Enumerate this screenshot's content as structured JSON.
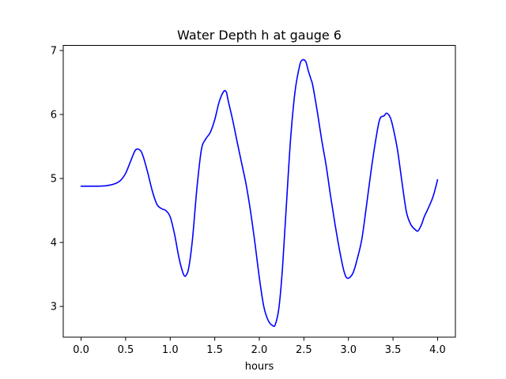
{
  "chart_data": {
    "type": "line",
    "title": "Water Depth h at gauge 6",
    "xlabel": "hours",
    "ylabel": "",
    "xlim": [
      -0.2,
      4.2
    ],
    "ylim": [
      2.52,
      7.08
    ],
    "xticks": [
      0.0,
      0.5,
      1.0,
      1.5,
      2.0,
      2.5,
      3.0,
      3.5,
      4.0
    ],
    "xtick_labels": [
      "0.0",
      "0.5",
      "1.0",
      "1.5",
      "2.0",
      "2.5",
      "3.0",
      "3.5",
      "4.0"
    ],
    "yticks": [
      3,
      4,
      5,
      6,
      7
    ],
    "ytick_labels": [
      "3",
      "4",
      "5",
      "6",
      "7"
    ],
    "grid": false,
    "series": [
      {
        "name": "",
        "color": "#0000ff",
        "x": [
          0.0,
          0.2,
          0.3,
          0.4,
          0.45,
          0.5,
          0.55,
          0.6,
          0.63,
          0.67,
          0.7,
          0.75,
          0.8,
          0.85,
          0.9,
          0.95,
          1.0,
          1.05,
          1.1,
          1.15,
          1.18,
          1.21,
          1.25,
          1.3,
          1.35,
          1.4,
          1.45,
          1.5,
          1.55,
          1.6,
          1.63,
          1.65,
          1.7,
          1.75,
          1.8,
          1.85,
          1.9,
          1.95,
          2.0,
          2.05,
          2.1,
          2.15,
          2.18,
          2.22,
          2.26,
          2.3,
          2.35,
          2.4,
          2.45,
          2.48,
          2.52,
          2.55,
          2.58,
          2.6,
          2.65,
          2.7,
          2.75,
          2.8,
          2.85,
          2.9,
          2.95,
          2.99,
          3.05,
          3.1,
          3.15,
          3.2,
          3.25,
          3.3,
          3.35,
          3.4,
          3.43,
          3.47,
          3.5,
          3.55,
          3.6,
          3.65,
          3.7,
          3.75,
          3.78,
          3.82,
          3.85,
          3.9,
          3.95,
          4.0
        ],
        "y": [
          4.88,
          4.88,
          4.89,
          4.93,
          4.98,
          5.08,
          5.25,
          5.42,
          5.46,
          5.43,
          5.33,
          5.08,
          4.8,
          4.6,
          4.53,
          4.5,
          4.4,
          4.12,
          3.75,
          3.5,
          3.49,
          3.62,
          4.05,
          4.85,
          5.45,
          5.62,
          5.72,
          5.92,
          6.2,
          6.36,
          6.35,
          6.22,
          5.92,
          5.58,
          5.25,
          4.92,
          4.5,
          4.0,
          3.45,
          3.0,
          2.78,
          2.7,
          2.72,
          2.98,
          3.6,
          4.5,
          5.6,
          6.35,
          6.75,
          6.85,
          6.83,
          6.68,
          6.55,
          6.45,
          6.05,
          5.6,
          5.2,
          4.72,
          4.28,
          3.88,
          3.55,
          3.44,
          3.52,
          3.75,
          4.05,
          4.55,
          5.08,
          5.55,
          5.92,
          5.98,
          6.02,
          5.95,
          5.8,
          5.45,
          4.95,
          4.48,
          4.28,
          4.2,
          4.18,
          4.28,
          4.4,
          4.55,
          4.72,
          4.98
        ]
      }
    ]
  }
}
